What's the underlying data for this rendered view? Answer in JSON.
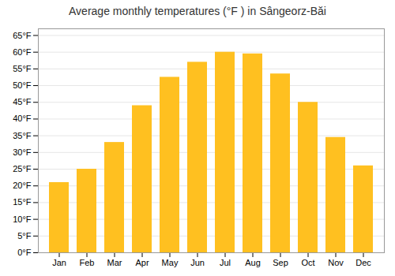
{
  "chart_data": {
    "type": "bar",
    "title": "Average monthly temperatures (°F ) in Sângeorz-Băi",
    "categories": [
      "Jan",
      "Feb",
      "Mar",
      "Apr",
      "May",
      "Jun",
      "Jul",
      "Aug",
      "Sep",
      "Oct",
      "Nov",
      "Dec"
    ],
    "values": [
      21,
      25,
      33,
      44,
      52.5,
      57,
      60,
      59.5,
      53.5,
      45,
      34.5,
      26
    ],
    "color": "#FFC020",
    "ylim": [
      0,
      67
    ],
    "yticks": [
      {
        "value": 0,
        "label": "0°F"
      },
      {
        "value": 5,
        "label": "5°F"
      },
      {
        "value": 10,
        "label": "10°F"
      },
      {
        "value": 15,
        "label": "15°F"
      },
      {
        "value": 20,
        "label": "20°F"
      },
      {
        "value": 25,
        "label": "25°F"
      },
      {
        "value": 30,
        "label": "30°F"
      },
      {
        "value": 35,
        "label": "35°F"
      },
      {
        "value": 40,
        "label": "40°F"
      },
      {
        "value": 45,
        "label": "45°F"
      },
      {
        "value": 50,
        "label": "50°F"
      },
      {
        "value": 55,
        "label": "55°F"
      },
      {
        "value": 60,
        "label": "60°F"
      },
      {
        "value": 65,
        "label": "65°F"
      }
    ],
    "grid": true
  }
}
